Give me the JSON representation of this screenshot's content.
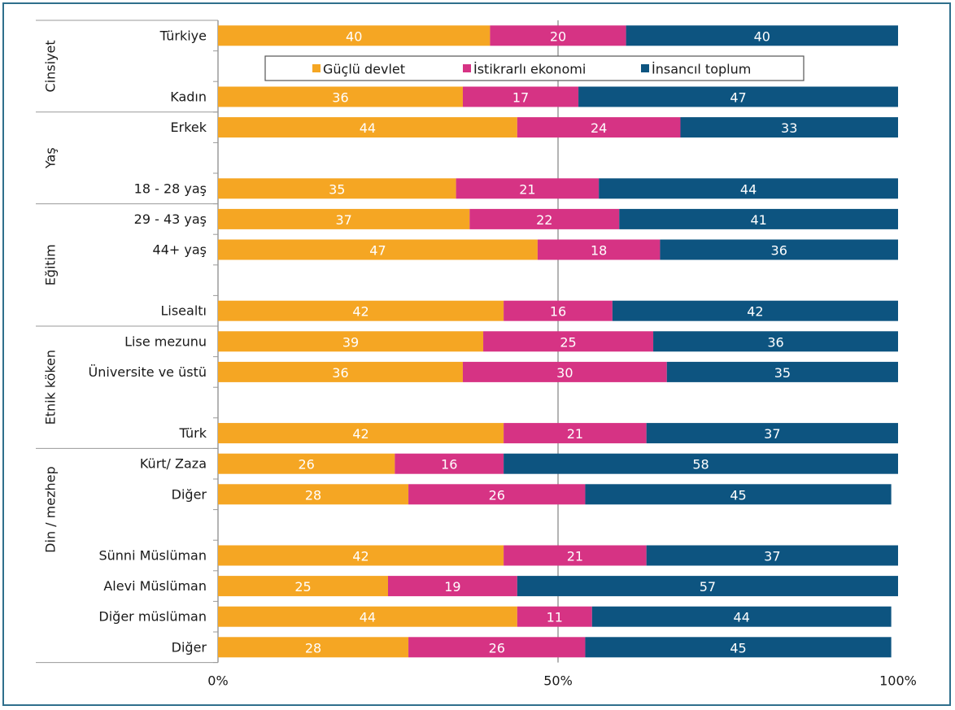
{
  "chart_data": {
    "type": "bar",
    "orientation": "horizontal",
    "stacked": "percent",
    "title": "",
    "xlabel": "",
    "ylabel": "",
    "xlim": [
      0,
      100
    ],
    "x_ticks": [
      "0%",
      "50%",
      "100%"
    ],
    "grid": "vertical at 50%",
    "legend_position": "top-inside",
    "colors": [
      "#f5a623",
      "#d63384",
      "#0d5480"
    ],
    "series": [
      {
        "name": "Güçlü devlet",
        "color": "#f5a623"
      },
      {
        "name": "İstikrarlı ekonomi",
        "color": "#d63384"
      },
      {
        "name": "İnsancıl toplum",
        "color": "#0d5480"
      }
    ],
    "slots": [
      {
        "label": "Türkiye",
        "values": [
          40,
          20,
          40
        ]
      },
      {
        "label": "",
        "values": null
      },
      {
        "label": "Kadın",
        "values": [
          36,
          17,
          47
        ]
      },
      {
        "label": "Erkek",
        "values": [
          44,
          24,
          33
        ]
      },
      {
        "label": "",
        "values": null
      },
      {
        "label": "18 - 28 yaş",
        "values": [
          35,
          21,
          44
        ]
      },
      {
        "label": "29 - 43 yaş",
        "values": [
          37,
          22,
          41
        ]
      },
      {
        "label": "44+ yaş",
        "values": [
          47,
          18,
          36
        ]
      },
      {
        "label": "",
        "values": null
      },
      {
        "label": "Lisealtı",
        "values": [
          42,
          16,
          42
        ]
      },
      {
        "label": "Lise mezunu",
        "values": [
          39,
          25,
          36
        ]
      },
      {
        "label": "Üniversite ve üstü",
        "values": [
          36,
          30,
          35
        ]
      },
      {
        "label": "",
        "values": null
      },
      {
        "label": "Türk",
        "values": [
          42,
          21,
          37
        ]
      },
      {
        "label": "Kürt/ Zaza",
        "values": [
          26,
          16,
          58
        ]
      },
      {
        "label": "Diğer",
        "values": [
          28,
          26,
          45
        ]
      },
      {
        "label": "",
        "values": null
      },
      {
        "label": "Sünni Müslüman",
        "values": [
          42,
          21,
          37
        ]
      },
      {
        "label": "Alevi Müslüman",
        "values": [
          25,
          19,
          57
        ]
      },
      {
        "label": "Diğer müslüman",
        "values": [
          44,
          11,
          44
        ]
      },
      {
        "label": "Diğer",
        "values": [
          28,
          26,
          45
        ]
      }
    ],
    "groups": [
      {
        "label": "Cinsiyet",
        "from": 0,
        "to": 2
      },
      {
        "label": "Yaş",
        "from": 3,
        "to": 5
      },
      {
        "label": "Eğitim",
        "from": 6,
        "to": 9
      },
      {
        "label": "Etnik köken",
        "from": 10,
        "to": 13
      },
      {
        "label": "Din / mezhep",
        "from": 14,
        "to": 17
      }
    ]
  }
}
